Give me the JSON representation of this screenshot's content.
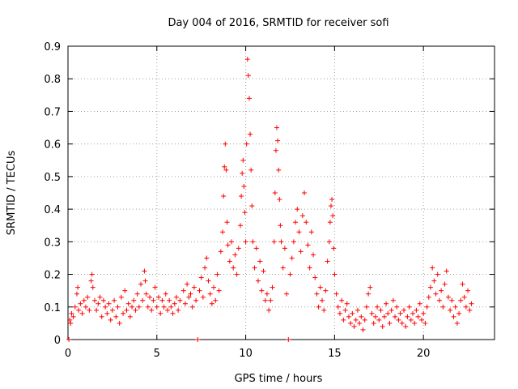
{
  "chart_data": {
    "type": "scatter",
    "title": "Day 004 of 2016, SRMTID for receiver sofi",
    "xlabel": "GPS time / hours",
    "ylabel": "SRMTID / TECUs",
    "xlim": [
      0,
      24
    ],
    "ylim": [
      0,
      0.9
    ],
    "xticks": [
      0,
      5,
      10,
      15,
      20
    ],
    "xtick_labels": [
      "0",
      "5",
      "10",
      "15",
      "20"
    ],
    "yticks": [
      0,
      0.1,
      0.2,
      0.3,
      0.4,
      0.5,
      0.6,
      0.7,
      0.8,
      0.9
    ],
    "ytick_labels": [
      "0",
      "0.1",
      "0.2",
      "0.3",
      "0.4",
      "0.5",
      "0.6",
      "0.7",
      "0.8",
      "0.9"
    ],
    "grid": true,
    "marker": "+",
    "color": "#ff0000",
    "series": [
      {
        "name": "SRMTID",
        "points": [
          [
            0.05,
            0.0
          ],
          [
            0.1,
            0.06
          ],
          [
            0.15,
            0.05
          ],
          [
            0.2,
            0.08
          ],
          [
            0.3,
            0.07
          ],
          [
            0.4,
            0.1
          ],
          [
            0.5,
            0.14
          ],
          [
            0.55,
            0.16
          ],
          [
            0.6,
            0.09
          ],
          [
            0.7,
            0.11
          ],
          [
            0.8,
            0.08
          ],
          [
            0.9,
            0.12
          ],
          [
            1.0,
            0.1
          ],
          [
            1.1,
            0.13
          ],
          [
            1.2,
            0.09
          ],
          [
            1.3,
            0.18
          ],
          [
            1.35,
            0.2
          ],
          [
            1.4,
            0.16
          ],
          [
            1.5,
            0.12
          ],
          [
            1.6,
            0.09
          ],
          [
            1.7,
            0.11
          ],
          [
            1.8,
            0.13
          ],
          [
            1.9,
            0.07
          ],
          [
            2.0,
            0.12
          ],
          [
            2.1,
            0.1
          ],
          [
            2.2,
            0.08
          ],
          [
            2.3,
            0.11
          ],
          [
            2.4,
            0.06
          ],
          [
            2.5,
            0.09
          ],
          [
            2.6,
            0.12
          ],
          [
            2.7,
            0.07
          ],
          [
            2.8,
            0.1
          ],
          [
            2.9,
            0.05
          ],
          [
            3.0,
            0.13
          ],
          [
            3.1,
            0.08
          ],
          [
            3.2,
            0.15
          ],
          [
            3.3,
            0.09
          ],
          [
            3.4,
            0.11
          ],
          [
            3.5,
            0.07
          ],
          [
            3.6,
            0.1
          ],
          [
            3.7,
            0.12
          ],
          [
            3.8,
            0.09
          ],
          [
            3.9,
            0.14
          ],
          [
            4.0,
            0.1
          ],
          [
            4.1,
            0.17
          ],
          [
            4.2,
            0.12
          ],
          [
            4.3,
            0.21
          ],
          [
            4.35,
            0.18
          ],
          [
            4.4,
            0.14
          ],
          [
            4.5,
            0.1
          ],
          [
            4.6,
            0.13
          ],
          [
            4.7,
            0.09
          ],
          [
            4.8,
            0.12
          ],
          [
            4.9,
            0.16
          ],
          [
            5.0,
            0.1
          ],
          [
            5.1,
            0.13
          ],
          [
            5.2,
            0.08
          ],
          [
            5.3,
            0.12
          ],
          [
            5.4,
            0.1
          ],
          [
            5.5,
            0.14
          ],
          [
            5.6,
            0.09
          ],
          [
            5.7,
            0.12
          ],
          [
            5.8,
            0.1
          ],
          [
            5.9,
            0.08
          ],
          [
            6.0,
            0.11
          ],
          [
            6.1,
            0.13
          ],
          [
            6.2,
            0.09
          ],
          [
            6.3,
            0.12
          ],
          [
            6.5,
            0.15
          ],
          [
            6.6,
            0.11
          ],
          [
            6.7,
            0.17
          ],
          [
            6.8,
            0.13
          ],
          [
            6.9,
            0.14
          ],
          [
            7.0,
            0.1
          ],
          [
            7.1,
            0.16
          ],
          [
            7.2,
            0.12
          ],
          [
            7.3,
            0.0
          ],
          [
            7.4,
            0.15
          ],
          [
            7.5,
            0.19
          ],
          [
            7.6,
            0.13
          ],
          [
            7.7,
            0.22
          ],
          [
            7.8,
            0.25
          ],
          [
            7.9,
            0.18
          ],
          [
            8.0,
            0.14
          ],
          [
            8.1,
            0.11
          ],
          [
            8.2,
            0.16
          ],
          [
            8.3,
            0.12
          ],
          [
            8.4,
            0.2
          ],
          [
            8.5,
            0.15
          ],
          [
            8.6,
            0.27
          ],
          [
            8.7,
            0.33
          ],
          [
            8.75,
            0.44
          ],
          [
            8.8,
            0.53
          ],
          [
            8.85,
            0.6
          ],
          [
            8.9,
            0.52
          ],
          [
            8.95,
            0.36
          ],
          [
            9.0,
            0.29
          ],
          [
            9.1,
            0.24
          ],
          [
            9.2,
            0.3
          ],
          [
            9.3,
            0.22
          ],
          [
            9.4,
            0.26
          ],
          [
            9.5,
            0.2
          ],
          [
            9.6,
            0.28
          ],
          [
            9.7,
            0.35
          ],
          [
            9.75,
            0.44
          ],
          [
            9.8,
            0.51
          ],
          [
            9.85,
            0.55
          ],
          [
            9.9,
            0.47
          ],
          [
            9.95,
            0.39
          ],
          [
            10.0,
            0.3
          ],
          [
            10.05,
            0.6
          ],
          [
            10.1,
            0.86
          ],
          [
            10.15,
            0.81
          ],
          [
            10.2,
            0.74
          ],
          [
            10.25,
            0.63
          ],
          [
            10.3,
            0.52
          ],
          [
            10.35,
            0.41
          ],
          [
            10.4,
            0.3
          ],
          [
            10.5,
            0.22
          ],
          [
            10.6,
            0.28
          ],
          [
            10.7,
            0.18
          ],
          [
            10.8,
            0.24
          ],
          [
            10.9,
            0.15
          ],
          [
            11.0,
            0.21
          ],
          [
            11.1,
            0.12
          ],
          [
            11.2,
            0.14
          ],
          [
            11.3,
            0.09
          ],
          [
            11.4,
            0.12
          ],
          [
            11.5,
            0.16
          ],
          [
            11.6,
            0.3
          ],
          [
            11.65,
            0.45
          ],
          [
            11.7,
            0.58
          ],
          [
            11.75,
            0.65
          ],
          [
            11.8,
            0.61
          ],
          [
            11.85,
            0.52
          ],
          [
            11.9,
            0.43
          ],
          [
            11.95,
            0.35
          ],
          [
            12.0,
            0.3
          ],
          [
            12.1,
            0.22
          ],
          [
            12.2,
            0.28
          ],
          [
            12.3,
            0.14
          ],
          [
            12.4,
            0.0
          ],
          [
            12.5,
            0.2
          ],
          [
            12.6,
            0.25
          ],
          [
            12.7,
            0.3
          ],
          [
            12.8,
            0.36
          ],
          [
            12.9,
            0.4
          ],
          [
            13.0,
            0.33
          ],
          [
            13.1,
            0.27
          ],
          [
            13.2,
            0.38
          ],
          [
            13.3,
            0.45
          ],
          [
            13.4,
            0.36
          ],
          [
            13.5,
            0.29
          ],
          [
            13.6,
            0.22
          ],
          [
            13.7,
            0.33
          ],
          [
            13.8,
            0.26
          ],
          [
            13.9,
            0.19
          ],
          [
            14.0,
            0.14
          ],
          [
            14.1,
            0.1
          ],
          [
            14.2,
            0.16
          ],
          [
            14.3,
            0.12
          ],
          [
            14.4,
            0.09
          ],
          [
            14.5,
            0.15
          ],
          [
            14.6,
            0.24
          ],
          [
            14.7,
            0.3
          ],
          [
            14.75,
            0.36
          ],
          [
            14.8,
            0.41
          ],
          [
            14.85,
            0.43
          ],
          [
            14.9,
            0.38
          ],
          [
            14.95,
            0.28
          ],
          [
            15.0,
            0.2
          ],
          [
            15.1,
            0.14
          ],
          [
            15.2,
            0.1
          ],
          [
            15.3,
            0.08
          ],
          [
            15.4,
            0.12
          ],
          [
            15.5,
            0.06
          ],
          [
            15.6,
            0.09
          ],
          [
            15.7,
            0.11
          ],
          [
            15.8,
            0.07
          ],
          [
            15.9,
            0.05
          ],
          [
            16.0,
            0.08
          ],
          [
            16.1,
            0.04
          ],
          [
            16.2,
            0.06
          ],
          [
            16.3,
            0.09
          ],
          [
            16.4,
            0.05
          ],
          [
            16.5,
            0.07
          ],
          [
            16.6,
            0.03
          ],
          [
            16.7,
            0.06
          ],
          [
            16.8,
            0.1
          ],
          [
            16.9,
            0.14
          ],
          [
            17.0,
            0.16
          ],
          [
            17.1,
            0.08
          ],
          [
            17.2,
            0.05
          ],
          [
            17.3,
            0.07
          ],
          [
            17.4,
            0.1
          ],
          [
            17.5,
            0.06
          ],
          [
            17.6,
            0.09
          ],
          [
            17.7,
            0.04
          ],
          [
            17.8,
            0.07
          ],
          [
            17.9,
            0.11
          ],
          [
            18.0,
            0.08
          ],
          [
            18.1,
            0.05
          ],
          [
            18.2,
            0.09
          ],
          [
            18.3,
            0.12
          ],
          [
            18.4,
            0.07
          ],
          [
            18.5,
            0.1
          ],
          [
            18.6,
            0.06
          ],
          [
            18.7,
            0.08
          ],
          [
            18.8,
            0.05
          ],
          [
            18.9,
            0.09
          ],
          [
            19.0,
            0.04
          ],
          [
            19.1,
            0.07
          ],
          [
            19.2,
            0.1
          ],
          [
            19.3,
            0.06
          ],
          [
            19.4,
            0.08
          ],
          [
            19.5,
            0.05
          ],
          [
            19.6,
            0.09
          ],
          [
            19.7,
            0.07
          ],
          [
            19.8,
            0.11
          ],
          [
            19.9,
            0.06
          ],
          [
            20.0,
            0.08
          ],
          [
            20.1,
            0.05
          ],
          [
            20.2,
            0.1
          ],
          [
            20.3,
            0.13
          ],
          [
            20.4,
            0.16
          ],
          [
            20.5,
            0.22
          ],
          [
            20.6,
            0.18
          ],
          [
            20.7,
            0.14
          ],
          [
            20.8,
            0.2
          ],
          [
            20.9,
            0.12
          ],
          [
            21.0,
            0.15
          ],
          [
            21.1,
            0.1
          ],
          [
            21.2,
            0.17
          ],
          [
            21.3,
            0.21
          ],
          [
            21.4,
            0.13
          ],
          [
            21.5,
            0.09
          ],
          [
            21.6,
            0.12
          ],
          [
            21.7,
            0.07
          ],
          [
            21.8,
            0.1
          ],
          [
            21.9,
            0.05
          ],
          [
            22.0,
            0.08
          ],
          [
            22.1,
            0.12
          ],
          [
            22.2,
            0.17
          ],
          [
            22.3,
            0.13
          ],
          [
            22.4,
            0.1
          ],
          [
            22.5,
            0.15
          ],
          [
            22.6,
            0.09
          ],
          [
            22.7,
            0.11
          ]
        ]
      }
    ]
  }
}
